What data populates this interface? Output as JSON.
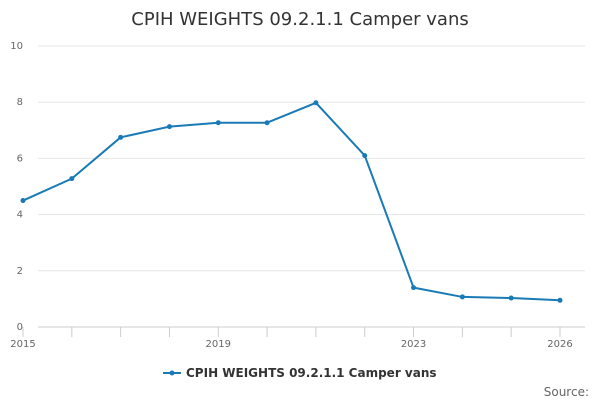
{
  "chart_data": {
    "type": "line",
    "title": "CPIH WEIGHTS 09.2.1.1 Camper vans",
    "xlabel": "",
    "ylabel": "",
    "x": [
      2015,
      2016,
      2017,
      2018,
      2019,
      2020,
      2021,
      2022,
      2023,
      2024,
      2025,
      2026
    ],
    "x_tick_labels": [
      "2015",
      "2019",
      "2023",
      "2026"
    ],
    "ylim": [
      0,
      10
    ],
    "y_ticks": [
      0,
      2,
      4,
      6,
      8,
      10
    ],
    "series": [
      {
        "name": "CPIH WEIGHTS 09.2.1.1 Camper vans",
        "color": "#1a7ab5",
        "values": [
          4.5,
          5.28,
          6.75,
          7.13,
          7.27,
          7.27,
          7.98,
          6.1,
          1.4,
          1.07,
          1.03,
          0.95
        ]
      }
    ],
    "legend_position": "bottom-center",
    "grid": true,
    "source_label": "Source:"
  }
}
